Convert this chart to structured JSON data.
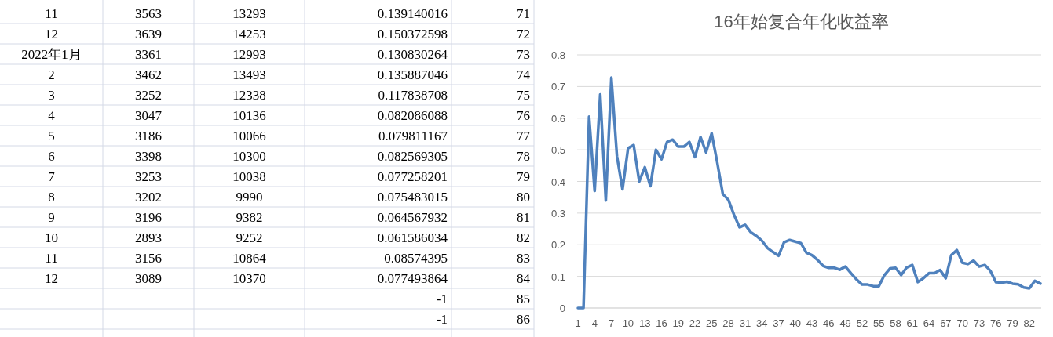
{
  "chart_data": [
    {
      "type": "other",
      "cells": [
        [
          "11",
          "3563",
          "13293",
          "0.139140016",
          "71"
        ],
        [
          "12",
          "3639",
          "14253",
          "0.150372598",
          "72"
        ],
        [
          "2022年1月",
          "3361",
          "12993",
          "0.130830264",
          "73"
        ],
        [
          "2",
          "3462",
          "13493",
          "0.135887046",
          "74"
        ],
        [
          "3",
          "3252",
          "12338",
          "0.117838708",
          "75"
        ],
        [
          "4",
          "3047",
          "10136",
          "0.082086088",
          "76"
        ],
        [
          "5",
          "3186",
          "10066",
          "0.079811167",
          "77"
        ],
        [
          "6",
          "3398",
          "10300",
          "0.082569305",
          "78"
        ],
        [
          "7",
          "3253",
          "10038",
          "0.077258201",
          "79"
        ],
        [
          "8",
          "3202",
          "9990",
          "0.075483015",
          "80"
        ],
        [
          "9",
          "3196",
          "9382",
          "0.064567932",
          "81"
        ],
        [
          "10",
          "2893",
          "9252",
          "0.061586034",
          "82"
        ],
        [
          "11",
          "3156",
          "10864",
          "0.08574395",
          "83"
        ],
        [
          "12",
          "3089",
          "10370",
          "0.077493864",
          "84"
        ],
        [
          null,
          null,
          null,
          "-1",
          "85"
        ],
        [
          null,
          null,
          null,
          "-1",
          "86"
        ]
      ]
    },
    {
      "type": "line",
      "title": "16年始复合年化收益率",
      "categories": [
        "1",
        null,
        null,
        "4",
        null,
        null,
        "7",
        null,
        null,
        "10",
        null,
        null,
        "13",
        null,
        null,
        "16",
        null,
        null,
        "19",
        null,
        null,
        "22",
        null,
        null,
        "25",
        null,
        null,
        "28",
        null,
        null,
        "31",
        null,
        null,
        "34",
        null,
        null,
        "37",
        null,
        null,
        "40",
        null,
        null,
        "43",
        null,
        null,
        "46",
        null,
        null,
        "49",
        null,
        null,
        "52",
        null,
        null,
        "55",
        null,
        null,
        "58",
        null,
        null,
        "61",
        null,
        null,
        "64",
        null,
        null,
        "67",
        null,
        null,
        "70",
        null,
        null,
        "73",
        null,
        null,
        "76",
        null,
        null,
        "79",
        null,
        null,
        "82",
        null,
        null
      ],
      "series": [
        {
          "color": "#4f81bd",
          "values": [
            0,
            0,
            0.605,
            0.37,
            0.675,
            0.34,
            0.728,
            0.48,
            0.375,
            0.505,
            0.515,
            0.4,
            0.445,
            0.385,
            0.5,
            0.47,
            0.525,
            0.532,
            0.51,
            0.51,
            0.525,
            0.477,
            0.54,
            0.492,
            0.552,
            0.46,
            0.36,
            0.342,
            0.295,
            0.255,
            0.263,
            0.24,
            0.228,
            0.213,
            0.19,
            0.177,
            0.165,
            0.208,
            0.215,
            0.21,
            0.205,
            0.175,
            0.167,
            0.152,
            0.133,
            0.127,
            0.127,
            0.121,
            0.131,
            0.11,
            0.09,
            0.074,
            0.074,
            0.069,
            0.069,
            0.104,
            0.125,
            0.127,
            0.104,
            0.128,
            0.136,
            0.082,
            0.094,
            0.11,
            0.11,
            0.12,
            0.094,
            0.167,
            0.183,
            0.143,
            0.139,
            0.15,
            0.131,
            0.136,
            0.118,
            0.082,
            0.08,
            0.083,
            0.077,
            0.075,
            0.065,
            0.062,
            0.086,
            0.077
          ]
        }
      ],
      "ylim": [
        0,
        0.8
      ],
      "yticks": [
        0,
        0.1,
        0.2,
        0.3,
        0.4,
        0.5,
        0.6,
        0.7,
        0.8
      ],
      "grid": "y",
      "marker": "none",
      "line_style": "solid"
    }
  ]
}
